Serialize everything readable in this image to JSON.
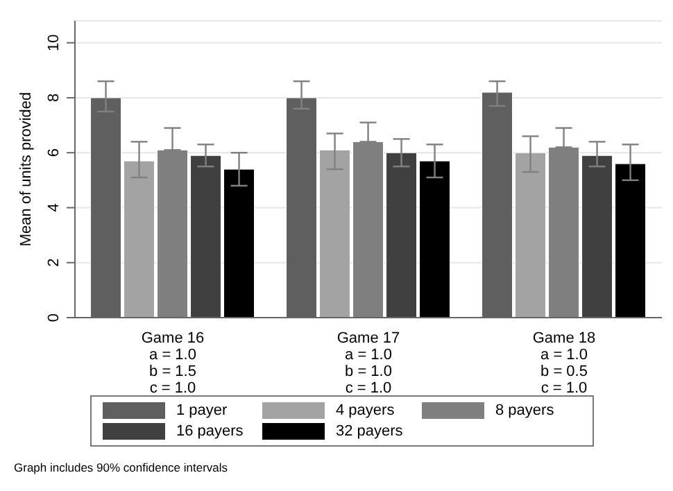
{
  "chart_data": {
    "type": "bar",
    "ylabel": "Mean of units provided",
    "categories": [
      "Game 16\na = 1.0\nb = 1.5\nc = 1.0",
      "Game 17\na = 1.0\nb = 1.0\nc = 1.0",
      "Game 18\na = 1.0\nb = 0.5\nc = 1.0"
    ],
    "series": [
      {
        "name": "1 payer",
        "color": "#5f5f5f",
        "values": [
          8.0,
          8.0,
          8.2
        ],
        "errors": [
          [
            7.5,
            8.6
          ],
          [
            7.6,
            8.6
          ],
          [
            7.7,
            8.6
          ]
        ]
      },
      {
        "name": "4 payers",
        "color": "#a3a3a3",
        "values": [
          5.7,
          6.1,
          6.0
        ],
        "errors": [
          [
            5.1,
            6.4
          ],
          [
            5.4,
            6.7
          ],
          [
            5.3,
            6.6
          ]
        ]
      },
      {
        "name": "8 payers",
        "color": "#7f7f7f",
        "values": [
          6.1,
          6.4,
          6.2
        ],
        "errors": [
          [
            6.1,
            6.9
          ],
          [
            6.4,
            7.1
          ],
          [
            6.2,
            6.9
          ]
        ]
      },
      {
        "name": "16 payers",
        "color": "#404040",
        "values": [
          5.9,
          6.0,
          5.9
        ],
        "errors": [
          [
            5.5,
            6.3
          ],
          [
            5.5,
            6.5
          ],
          [
            5.5,
            6.4
          ]
        ]
      },
      {
        "name": "32 payers",
        "color": "#000000",
        "values": [
          5.4,
          5.7,
          5.6
        ],
        "errors": [
          [
            4.8,
            6.0
          ],
          [
            5.1,
            6.3
          ],
          [
            5.0,
            6.3
          ]
        ]
      }
    ],
    "ylim": [
      0,
      10.8
    ],
    "yticks": [
      0,
      2,
      4,
      6,
      8,
      10
    ],
    "grid": "y",
    "legend": "bottom",
    "annotations": [
      "Graph includes 90% confidence intervals"
    ]
  }
}
